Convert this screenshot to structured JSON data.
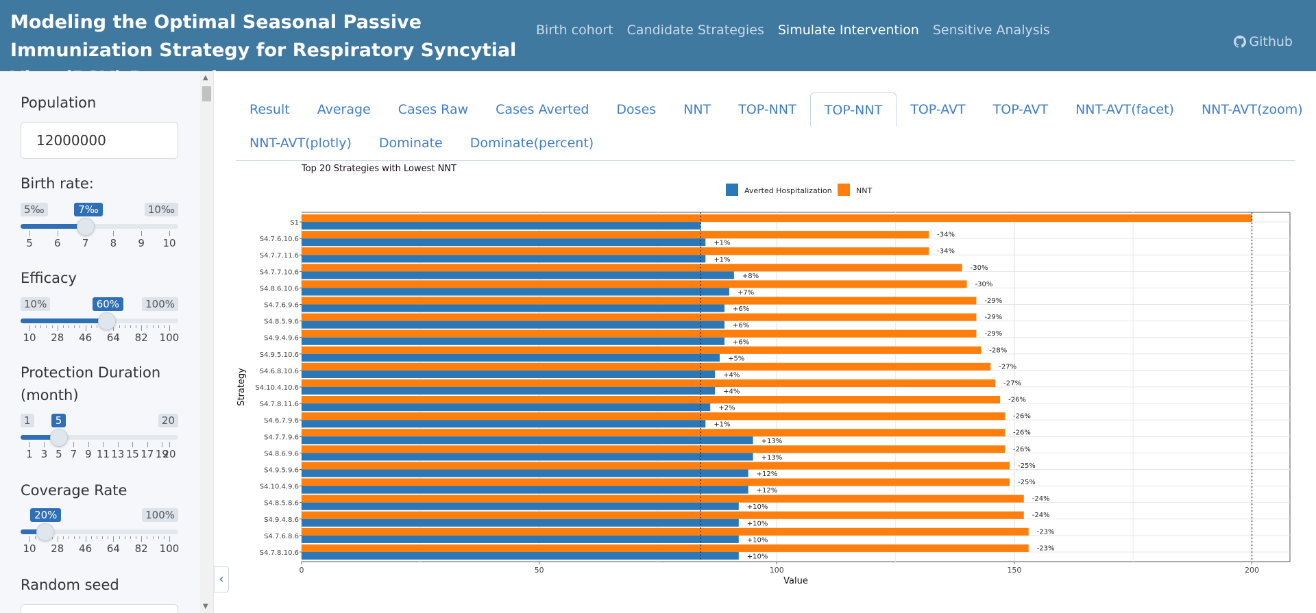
{
  "header": {
    "title": "Modeling the Optimal Seasonal Passive Immunization Strategy for Respiratory Syncytial Virus(RSV) Prevention",
    "nav": [
      {
        "label": "Birth cohort",
        "active": false
      },
      {
        "label": "Candidate Strategies",
        "active": false
      },
      {
        "label": "Simulate Intervention",
        "active": true
      },
      {
        "label": "Sensitive Analysis",
        "active": false
      }
    ],
    "github_label": "Github",
    "bg_color": "#3f79a0"
  },
  "sidebar": {
    "population": {
      "label": "Population",
      "value": "12000000"
    },
    "birth_rate": {
      "label": "Birth rate:",
      "min_label": "5‰",
      "max_label": "10‰",
      "value_label": "7‰",
      "min": 5,
      "max": 10,
      "value": 7,
      "tick_labels": [
        "5",
        "6",
        "7",
        "8",
        "9",
        "10"
      ]
    },
    "efficacy": {
      "label": "Efficacy",
      "min_label": "10%",
      "max_label": "100%",
      "value_label": "60%",
      "min": 10,
      "max": 100,
      "value": 60,
      "tick_labels": [
        "10",
        "28",
        "46",
        "64",
        "82",
        "100"
      ]
    },
    "duration": {
      "label": "Protection Duration (month)",
      "min_label": "1",
      "max_label": "20",
      "value_label": "5",
      "min": 1,
      "max": 20,
      "value": 5,
      "tick_labels": [
        "1",
        "3",
        "5",
        "7",
        "9",
        "11",
        "13",
        "15",
        "17",
        "19",
        "20"
      ]
    },
    "coverage": {
      "label": "Coverage Rate",
      "min_label": "",
      "max_label": "100%",
      "value_label": "20%",
      "min": 10,
      "max": 100,
      "value": 20,
      "tick_labels": [
        "10",
        "28",
        "46",
        "64",
        "82",
        "100"
      ]
    },
    "random_seed": {
      "label": "Random seed"
    },
    "accent": "#2f6fb5"
  },
  "tabs": {
    "row1": [
      "Result",
      "Average",
      "Cases Raw",
      "Cases Averted",
      "Doses",
      "NNT",
      "TOP-NNT",
      "TOP-NNT",
      "TOP-AVT",
      "TOP-AVT",
      "NNT-AVT(facet)",
      "NNT-AVT(zoom)"
    ],
    "row2": [
      "NNT-AVT(plotly)",
      "Dominate",
      "Dominate(percent)"
    ],
    "active_index": 7
  },
  "chart_data": {
    "type": "bar",
    "title": "Top 20 Strategies with Lowest NNT",
    "xlabel": "Value",
    "ylabel": "Strategy",
    "xlim": [
      0,
      208
    ],
    "x_ticks": [
      0,
      50,
      100,
      150,
      200
    ],
    "legend_position": "top-center",
    "reference_lines": [
      84,
      200
    ],
    "categories": [
      "S1",
      "S4.7.6.10.6",
      "S4.7.7.11.6",
      "S4.7.7.10.6",
      "S4.8.6.10.6",
      "S4.7.6.9.6",
      "S4.8.5.9.6",
      "S4.9.4.9.6",
      "S4.9.5.10.6",
      "S4.6.8.10.6",
      "S4.10.4.10.6",
      "S4.7.8.11.6",
      "S4.6.7.9.6",
      "S4.7.7.9.6",
      "S4.8.6.9.6",
      "S4.9.5.9.6",
      "S4.10.4.9.6",
      "S4.8.5.8.6",
      "S4.9.4.8.6",
      "S4.7.6.8.6",
      "S4.7.8.10.6"
    ],
    "series": [
      {
        "name": "Averted Hospitalization",
        "color": "#2b78b8",
        "values": [
          84,
          85,
          85,
          91,
          90,
          89,
          89,
          89,
          88,
          87,
          87,
          86,
          85,
          95,
          95,
          94,
          94,
          92,
          92,
          92,
          92
        ],
        "labels": [
          "",
          "+1%",
          "+1%",
          "+8%",
          "+7%",
          "+6%",
          "+6%",
          "+6%",
          "+5%",
          "+4%",
          "+4%",
          "+2%",
          "+1%",
          "+13%",
          "+13%",
          "+12%",
          "+12%",
          "+10%",
          "+10%",
          "+10%",
          "+10%"
        ]
      },
      {
        "name": "NNT",
        "color": "#ff7f0e",
        "values": [
          200,
          132,
          132,
          139,
          140,
          142,
          142,
          142,
          143,
          145,
          146,
          147,
          148,
          148,
          148,
          149,
          149,
          152,
          152,
          153,
          153
        ],
        "labels": [
          "",
          "-34%",
          "-34%",
          "-30%",
          "-30%",
          "-29%",
          "-29%",
          "-29%",
          "-28%",
          "-27%",
          "-27%",
          "-26%",
          "-26%",
          "-26%",
          "-26%",
          "-25%",
          "-25%",
          "-24%",
          "-24%",
          "-23%",
          "-23%"
        ]
      }
    ]
  }
}
